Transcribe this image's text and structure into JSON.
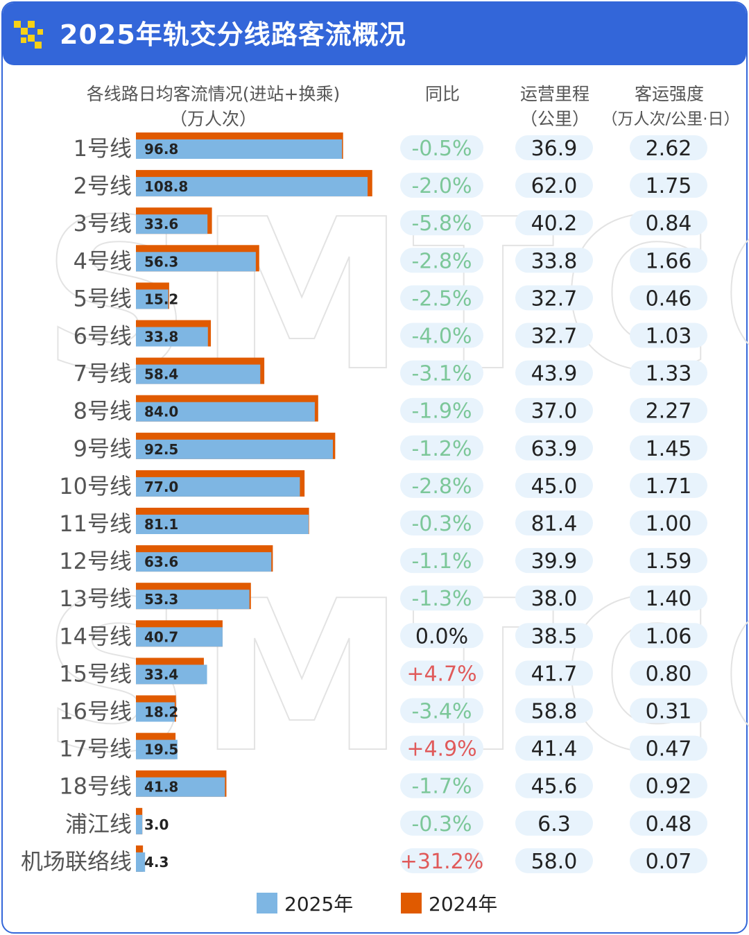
{
  "header": {
    "title": "2025年轨交分线路客流概况",
    "bg_color": "#3366d9",
    "logo_icon": "yellow-pixel-logo-icon"
  },
  "columns": {
    "flow_title": "各线路日均客流情况(进站+换乘)",
    "flow_unit": "（万人次）",
    "yoy": "同比",
    "mileage_title": "运营里程",
    "mileage_unit": "（公里）",
    "intensity_title": "客运强度",
    "intensity_unit": "（万人次/公里·日）"
  },
  "watermark": "SMTCC",
  "legend": {
    "items": [
      {
        "label": "2025年",
        "color": "#7eb6e3"
      },
      {
        "label": "2024年",
        "color": "#e05a00"
      }
    ]
  },
  "colors": {
    "bar_2025": "#7eb6e3",
    "bar_2024": "#e05a00",
    "pill": "#e8f3fc",
    "negative": "#7cc799",
    "positive": "#e05a5a",
    "neutral": "#222222"
  },
  "chart_data": {
    "type": "bar",
    "orientation": "horizontal",
    "categories": [
      "1号线",
      "2号线",
      "3号线",
      "4号线",
      "5号线",
      "6号线",
      "7号线",
      "8号线",
      "9号线",
      "10号线",
      "11号线",
      "12号线",
      "13号线",
      "14号线",
      "15号线",
      "16号线",
      "17号线",
      "18号线",
      "浦江线",
      "机场联络线"
    ],
    "series": [
      {
        "name": "2025年",
        "values": [
          96.8,
          108.8,
          33.6,
          56.3,
          15.2,
          33.8,
          58.4,
          84.0,
          92.5,
          77.0,
          81.1,
          63.6,
          53.3,
          40.7,
          33.4,
          18.2,
          19.5,
          41.8,
          3.0,
          4.3
        ]
      },
      {
        "name": "2024年",
        "values": [
          97.3,
          111.0,
          35.7,
          57.9,
          15.6,
          35.2,
          60.3,
          85.6,
          93.6,
          79.2,
          81.3,
          64.3,
          54.0,
          40.7,
          31.9,
          18.8,
          18.6,
          42.5,
          3.0,
          3.3
        ]
      }
    ],
    "yoy": [
      "-0.5%",
      "-2.0%",
      "-5.8%",
      "-2.8%",
      "-2.5%",
      "-4.0%",
      "-3.1%",
      "-1.9%",
      "-1.2%",
      "-2.8%",
      "-0.3%",
      "-1.1%",
      "-1.3%",
      "0.0%",
      "+4.7%",
      "-3.4%",
      "+4.9%",
      "-1.7%",
      "-0.3%",
      "+31.2%"
    ],
    "mileage": [
      "36.9",
      "62.0",
      "40.2",
      "33.8",
      "32.7",
      "32.7",
      "43.9",
      "37.0",
      "63.9",
      "45.0",
      "81.4",
      "39.9",
      "38.0",
      "38.5",
      "41.7",
      "58.8",
      "41.4",
      "45.6",
      "6.3",
      "58.0"
    ],
    "intensity": [
      "2.62",
      "1.75",
      "0.84",
      "1.66",
      "0.46",
      "1.03",
      "1.33",
      "2.27",
      "1.45",
      "1.71",
      "1.00",
      "1.59",
      "1.40",
      "1.06",
      "0.80",
      "0.31",
      "0.47",
      "0.92",
      "0.48",
      "0.07"
    ],
    "value_labels": [
      "96.8",
      "108.8",
      "33.6",
      "56.3",
      "15.2",
      "33.8",
      "58.4",
      "84.0",
      "92.5",
      "77.0",
      "81.1",
      "63.6",
      "53.3",
      "40.7",
      "33.4",
      "18.2",
      "19.5",
      "41.8",
      "3.0",
      "4.3"
    ],
    "legend_placement": "bottom-center",
    "grid": false
  }
}
